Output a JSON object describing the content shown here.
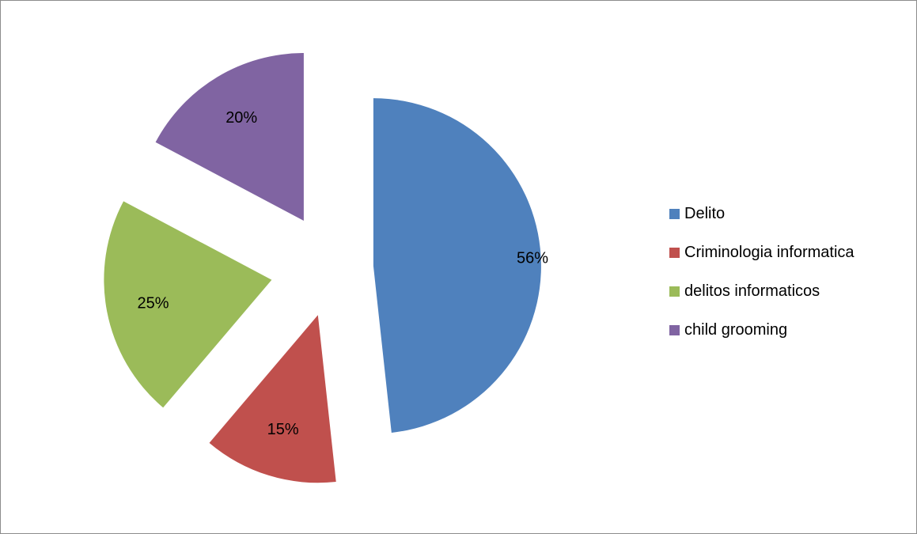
{
  "chart_data": {
    "type": "pie",
    "title": "",
    "legend_position": "right",
    "slices": [
      {
        "label": "Delito",
        "value": 56,
        "display": "56%",
        "color": "#4F81BD"
      },
      {
        "label": "Criminologia informatica",
        "value": 15,
        "display": "15%",
        "color": "#C0504D"
      },
      {
        "label": "delitos informaticos",
        "value": 25,
        "display": "25%",
        "color": "#9BBB59"
      },
      {
        "label": "child grooming",
        "value": 20,
        "display": "20%",
        "color": "#8064A2"
      }
    ]
  }
}
